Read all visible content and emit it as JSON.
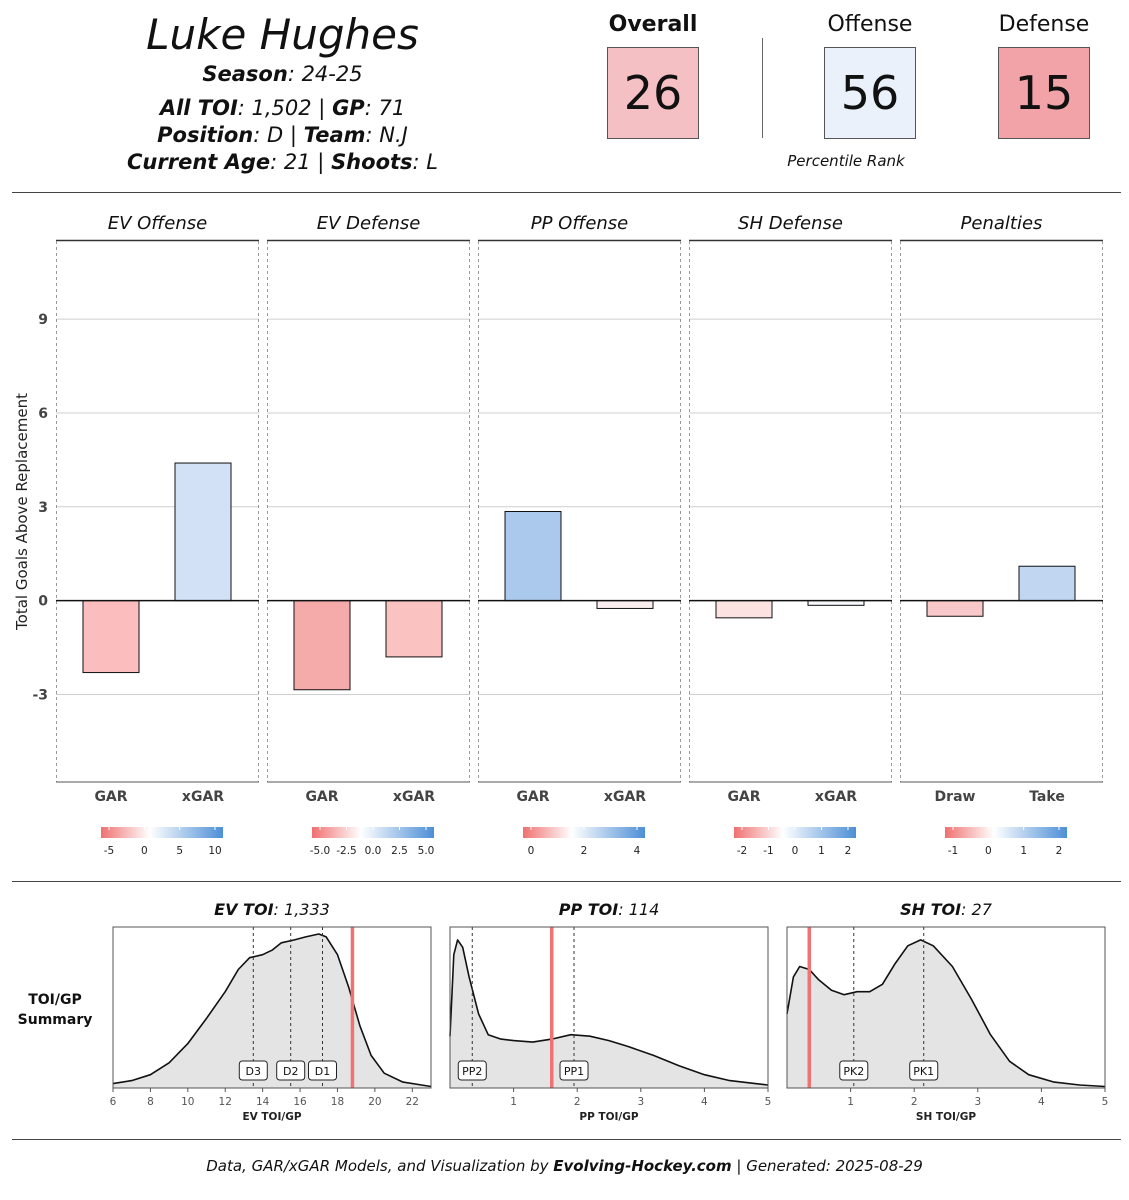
{
  "header": {
    "player_name": "Luke Hughes",
    "season_label": "Season",
    "season_value": ": 24-25",
    "toi_label": "All TOI",
    "toi_value": ": 1,502 | ",
    "gp_label": "GP",
    "gp_value": ": 71",
    "position_label": "Position",
    "position_value": ": D | ",
    "team_label": "Team",
    "team_value": ": N.J",
    "age_label": "Current Age",
    "age_value": ": 21 | ",
    "shoots_label": "Shoots",
    "shoots_value": ": L"
  },
  "ranks": {
    "overall_label": "Overall",
    "overall_value": "26",
    "overall_color": "#f5c0c4",
    "offense_label": "Offense",
    "offense_value": "56",
    "offense_color": "#ebf1fa",
    "defense_label": "Defense",
    "defense_value": "15",
    "defense_color": "#f2a3a7",
    "percentile_label": "Percentile Rank"
  },
  "chart_data": [
    {
      "type": "bar",
      "ylabel": "Total Goals Above Replacement",
      "ylim": [
        -5.8,
        11.5
      ],
      "yticks": [
        -3,
        0,
        3,
        6,
        9
      ],
      "panels": [
        {
          "title": "EV Offense",
          "categories": [
            "GAR",
            "xGAR"
          ],
          "values": [
            -2.3,
            4.4
          ],
          "colors": [
            "#fbbdbd",
            "#d2e1f5"
          ],
          "legend_ticks": [
            "-5",
            "0",
            "5",
            "10"
          ]
        },
        {
          "title": "EV Defense",
          "categories": [
            "GAR",
            "xGAR"
          ],
          "values": [
            -2.85,
            -1.8
          ],
          "colors": [
            "#f6abab",
            "#fbc2c2"
          ],
          "legend_ticks": [
            "-5.0",
            "-2.5",
            "0.0",
            "2.5",
            "5.0"
          ]
        },
        {
          "title": "PP Offense",
          "categories": [
            "GAR",
            "xGAR"
          ],
          "values": [
            2.85,
            -0.25
          ],
          "colors": [
            "#abc9ec",
            "#fbeeee"
          ],
          "legend_ticks": [
            "0",
            "2",
            "4"
          ]
        },
        {
          "title": "SH Defense",
          "categories": [
            "GAR",
            "xGAR"
          ],
          "values": [
            -0.55,
            -0.15
          ],
          "colors": [
            "#fde2e2",
            "#f7f8fc"
          ],
          "legend_ticks": [
            "-2",
            "-1",
            "0",
            "1",
            "2"
          ]
        },
        {
          "title": "Penalties",
          "categories": [
            "Draw",
            "Take"
          ],
          "values": [
            -0.5,
            1.1
          ],
          "colors": [
            "#f9c9c9",
            "#c1d6f1"
          ],
          "legend_ticks": [
            "-1",
            "0",
            "1",
            "2"
          ]
        }
      ]
    },
    {
      "type": "area",
      "side_label_line1": "TOI/GP",
      "side_label_line2": "Summary",
      "panels": [
        {
          "title_label": "EV TOI",
          "title_value": ": 1,333",
          "xlabel": "EV TOI/GP",
          "xlim": [
            6,
            23
          ],
          "xticks": [
            "6",
            "8",
            "10",
            "12",
            "14",
            "16",
            "18",
            "20",
            "22"
          ],
          "player_value": 18.8,
          "markers": [
            {
              "label": "D3",
              "x": 13.5
            },
            {
              "label": "D2",
              "x": 15.5
            },
            {
              "label": "D1",
              "x": 17.2
            }
          ],
          "density_x": [
            6,
            7,
            8,
            9,
            10,
            11,
            12,
            12.7,
            13.3,
            14,
            14.5,
            15,
            15.7,
            16.3,
            17,
            17.4,
            18,
            18.6,
            19.2,
            19.8,
            20.5,
            21.5,
            22.5,
            23
          ],
          "density_y": [
            0.03,
            0.05,
            0.09,
            0.17,
            0.3,
            0.47,
            0.65,
            0.8,
            0.88,
            0.9,
            0.93,
            0.98,
            1.0,
            1.02,
            1.04,
            1.02,
            0.9,
            0.68,
            0.42,
            0.22,
            0.1,
            0.04,
            0.02,
            0.01
          ]
        },
        {
          "title_label": "PP TOI",
          "title_value": ": 114",
          "xlabel": "PP TOI/GP",
          "xlim": [
            0,
            5
          ],
          "xticks": [
            "1",
            "2",
            "3",
            "4",
            "5"
          ],
          "player_value": 1.6,
          "markers": [
            {
              "label": "PP2",
              "x": 0.35
            },
            {
              "label": "PP1",
              "x": 1.95
            }
          ],
          "density_x": [
            0,
            0.06,
            0.12,
            0.2,
            0.3,
            0.45,
            0.6,
            0.8,
            1.0,
            1.3,
            1.6,
            1.9,
            2.2,
            2.5,
            2.8,
            3.2,
            3.6,
            4.0,
            4.4,
            4.8,
            5.0
          ],
          "density_y": [
            0.35,
            0.9,
            1.0,
            0.95,
            0.75,
            0.5,
            0.36,
            0.33,
            0.32,
            0.31,
            0.33,
            0.36,
            0.35,
            0.32,
            0.28,
            0.22,
            0.15,
            0.09,
            0.05,
            0.03,
            0.02
          ]
        },
        {
          "title_label": "SH TOI",
          "title_value": ": 27",
          "xlabel": "SH TOI/GP",
          "xlim": [
            0,
            5
          ],
          "xticks": [
            "1",
            "2",
            "3",
            "4",
            "5"
          ],
          "player_value": 0.35,
          "markers": [
            {
              "label": "PK2",
              "x": 1.05
            },
            {
              "label": "PK1",
              "x": 2.15
            }
          ],
          "density_x": [
            0,
            0.1,
            0.2,
            0.35,
            0.5,
            0.7,
            0.9,
            1.1,
            1.3,
            1.5,
            1.7,
            1.9,
            2.1,
            2.3,
            2.6,
            2.9,
            3.2,
            3.5,
            3.8,
            4.2,
            4.6,
            5.0
          ],
          "density_y": [
            0.5,
            0.75,
            0.82,
            0.8,
            0.73,
            0.66,
            0.63,
            0.65,
            0.65,
            0.7,
            0.84,
            0.96,
            1.0,
            0.96,
            0.82,
            0.6,
            0.36,
            0.18,
            0.09,
            0.04,
            0.02,
            0.01
          ]
        }
      ]
    }
  ],
  "footer": {
    "prefix": "Data, GAR/xGAR Models, and Visualization by ",
    "site": "Evolving-Hockey.com",
    "suffix": " | Generated: 2025-08-29"
  },
  "colors": {
    "player_line": "#f07272",
    "density_fill": "#e4e4e4",
    "scale_low": "#f07070",
    "scale_mid": "#ffffff",
    "scale_high": "#4d8fd6"
  }
}
